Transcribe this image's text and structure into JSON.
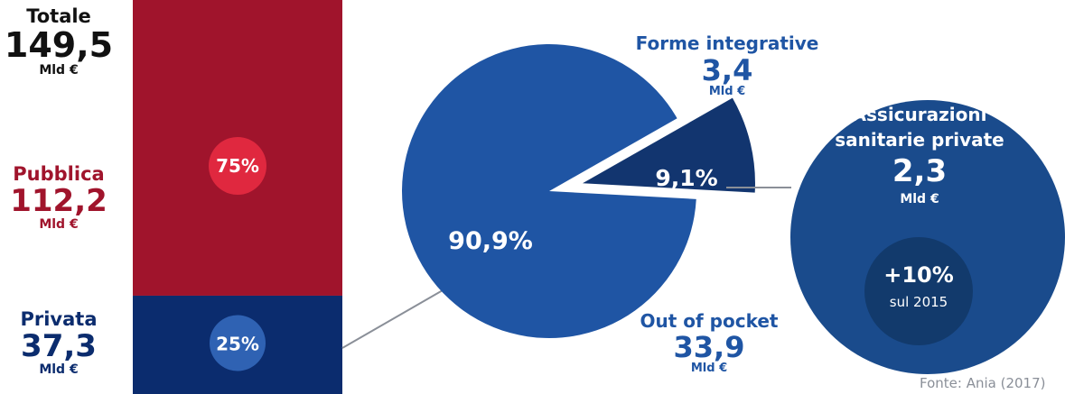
{
  "colors": {
    "publica": "#a0142c",
    "privata": "#0b2c6e",
    "pie_main": "#1f55a4",
    "slice": "#12356f",
    "insurance": "#1a4b8c",
    "badge_inner": "#123a6c",
    "pct_public_circle": "#e0283f",
    "pct_private_circle": "#2f62b3",
    "connector": "#8a8f98"
  },
  "totale": {
    "label": "Totale",
    "value": "149,5",
    "unit": "Mld €"
  },
  "pubblica": {
    "label": "Pubblica",
    "value": "112,2",
    "unit": "Mld €"
  },
  "privata": {
    "label": "Privata",
    "value": "37,3",
    "unit": "Mld €"
  },
  "bar": {
    "public_pct_label": "75%",
    "private_pct_label": "25%"
  },
  "pie": {
    "main_pct_label": "90,9%",
    "slice_pct_label": "9,1%",
    "forme": {
      "label": "Forme integrative",
      "value": "3,4",
      "unit": "Mld €"
    },
    "pocket": {
      "label": "Out of pocket",
      "value": "33,9",
      "unit": "Mld €"
    }
  },
  "insurance": {
    "label_line1": "Assicurazioni",
    "label_line2": "sanitarie private",
    "value": "2,3",
    "unit": "Mld €",
    "growth": "+10%",
    "growth_sub": "sul 2015"
  },
  "source": "Fonte: Ania (2017)",
  "chart_data": [
    {
      "type": "bar",
      "stacked": true,
      "categories": [
        "Totale"
      ],
      "total": 149.5,
      "series": [
        {
          "name": "Pubblica",
          "values": [
            112.2
          ],
          "percent": 75
        },
        {
          "name": "Privata",
          "values": [
            37.3
          ],
          "percent": 25
        }
      ]
    },
    {
      "type": "pie",
      "labels": [
        "Out of pocket",
        "Forme integrative"
      ],
      "values": [
        33.9,
        3.4
      ],
      "percents": [
        90.9,
        9.1
      ]
    },
    {
      "type": "bar",
      "categories": [
        "Assicurazioni sanitarie private"
      ],
      "values": [
        2.3
      ],
      "growth_vs_2015_percent": 10
    }
  ]
}
